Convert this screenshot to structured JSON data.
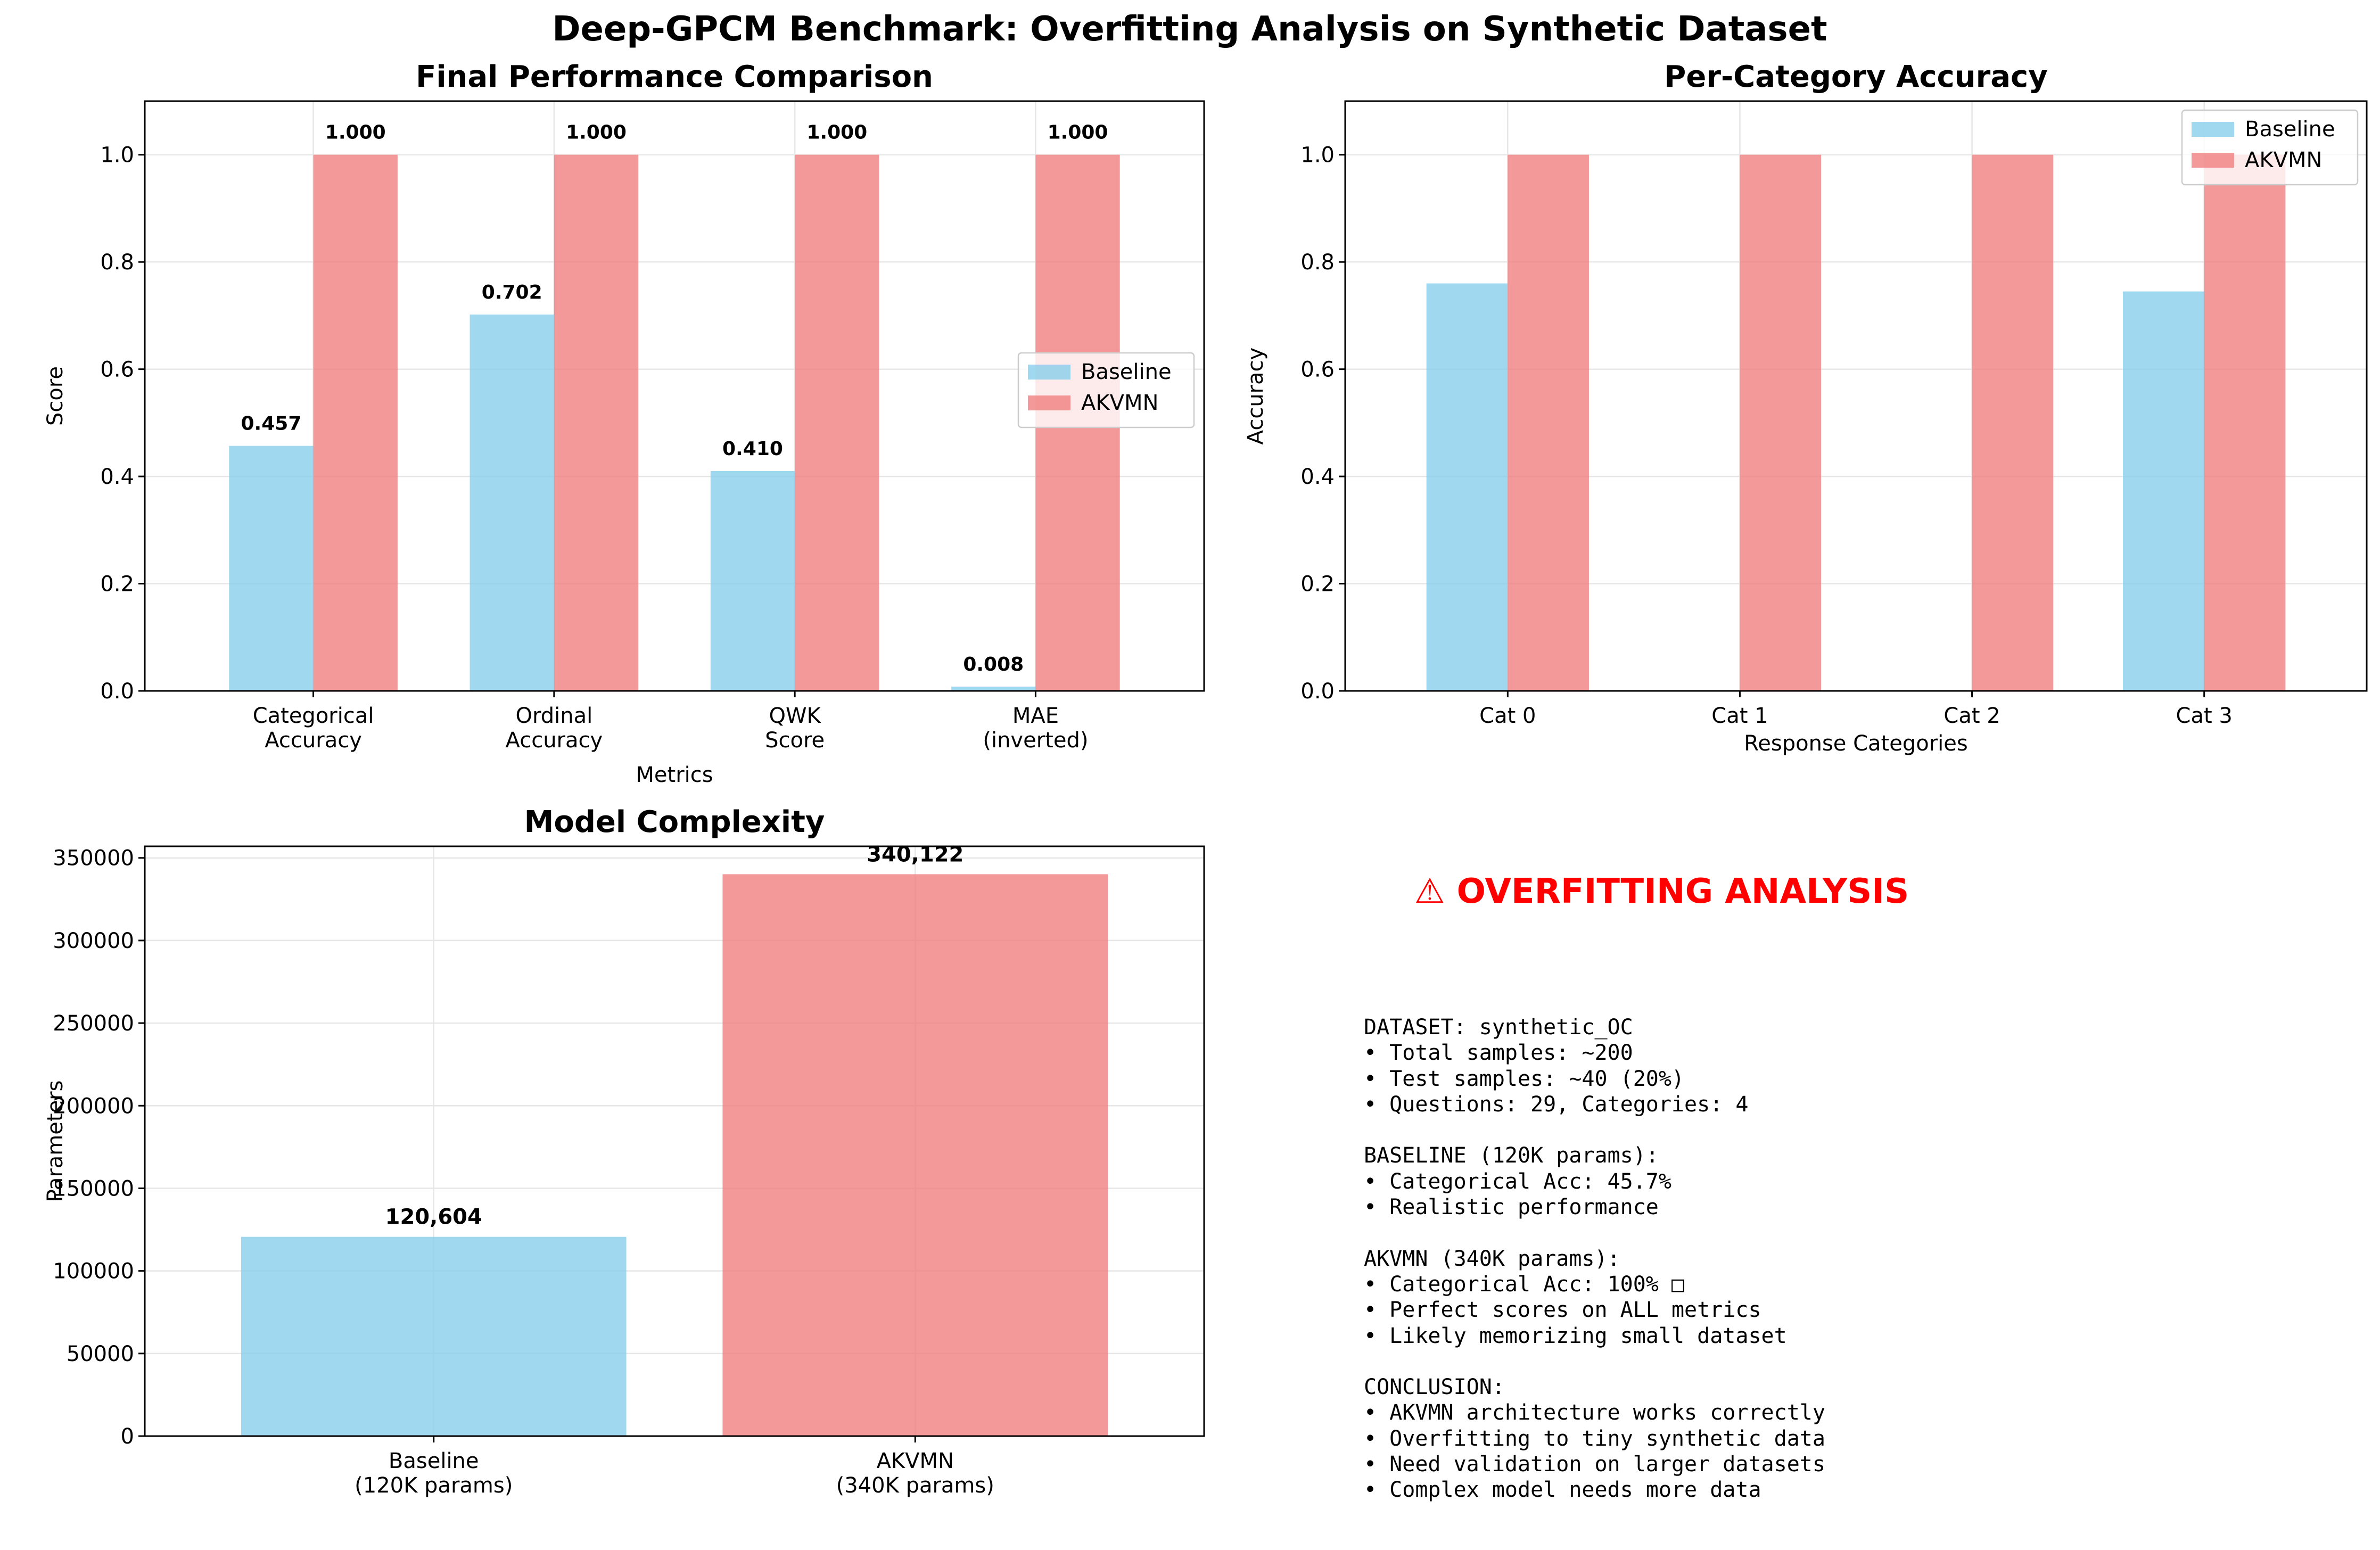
{
  "figure": {
    "suptitle": "Deep-GPCM Benchmark: Overfitting Analysis on Synthetic Dataset"
  },
  "colors": {
    "baseline": "#87CEEB",
    "akvmn": "#F08080"
  },
  "chart_data": [
    {
      "id": "performance",
      "type": "bar",
      "title": "Final Performance Comparison",
      "xlabel": "Metrics",
      "ylabel": "Score",
      "ylim": [
        0,
        1.1
      ],
      "yticks": [
        "0.0",
        "0.2",
        "0.4",
        "0.6",
        "0.8",
        "1.0"
      ],
      "categories": [
        [
          "Categorical",
          "Accuracy"
        ],
        [
          "Ordinal",
          "Accuracy"
        ],
        [
          "QWK",
          "Score"
        ],
        [
          "MAE",
          "(inverted)"
        ]
      ],
      "series": [
        {
          "name": "Baseline",
          "values": [
            0.457,
            0.702,
            0.41,
            0.008
          ],
          "labels": [
            "0.457",
            "0.702",
            "0.410",
            "0.008"
          ]
        },
        {
          "name": "AKVMN",
          "values": [
            1.0,
            1.0,
            1.0,
            1.0
          ],
          "labels": [
            "1.000",
            "1.000",
            "1.000",
            "1.000"
          ]
        }
      ],
      "legend": "center-right",
      "grid": true
    },
    {
      "id": "category",
      "type": "bar",
      "title": "Per-Category Accuracy",
      "xlabel": "Response Categories",
      "ylabel": "Accuracy",
      "ylim": [
        0,
        1.1
      ],
      "yticks": [
        "0.0",
        "0.2",
        "0.4",
        "0.6",
        "0.8",
        "1.0"
      ],
      "categories": [
        "Cat 0",
        "Cat 1",
        "Cat 2",
        "Cat 3"
      ],
      "series": [
        {
          "name": "Baseline",
          "values": [
            0.76,
            0.0,
            0.0,
            0.745
          ]
        },
        {
          "name": "AKVMN",
          "values": [
            1.0,
            1.0,
            1.0,
            1.0
          ]
        }
      ],
      "legend": "top-right",
      "grid": true
    },
    {
      "id": "complexity",
      "type": "bar",
      "title": "Model Complexity",
      "xlabel": "",
      "ylabel": "Parameters",
      "ylim": [
        0,
        357000
      ],
      "yticks": [
        "0",
        "50000",
        "100000",
        "150000",
        "200000",
        "250000",
        "300000",
        "350000"
      ],
      "categories": [
        [
          "Baseline",
          "(120K params)"
        ],
        [
          "AKVMN",
          "(340K params)"
        ]
      ],
      "values": [
        120604,
        340122
      ],
      "labels": [
        "120,604",
        "340,122"
      ],
      "grid": true
    }
  ],
  "analysis": {
    "title": "⚠ OVERFITTING ANALYSIS",
    "body": "DATASET: synthetic_OC\n• Total samples: ~200\n• Test samples: ~40 (20%)\n• Questions: 29, Categories: 4\n\nBASELINE (120K params):\n• Categorical Acc: 45.7%\n• Realistic performance\n\nAKVMN (340K params):\n• Categorical Acc: 100% □\n• Perfect scores on ALL metrics\n• Likely memorizing small dataset\n\nCONCLUSION:\n• AKVMN architecture works correctly\n• Overfitting to tiny synthetic data\n• Need validation on larger datasets\n• Complex model needs more data"
  }
}
